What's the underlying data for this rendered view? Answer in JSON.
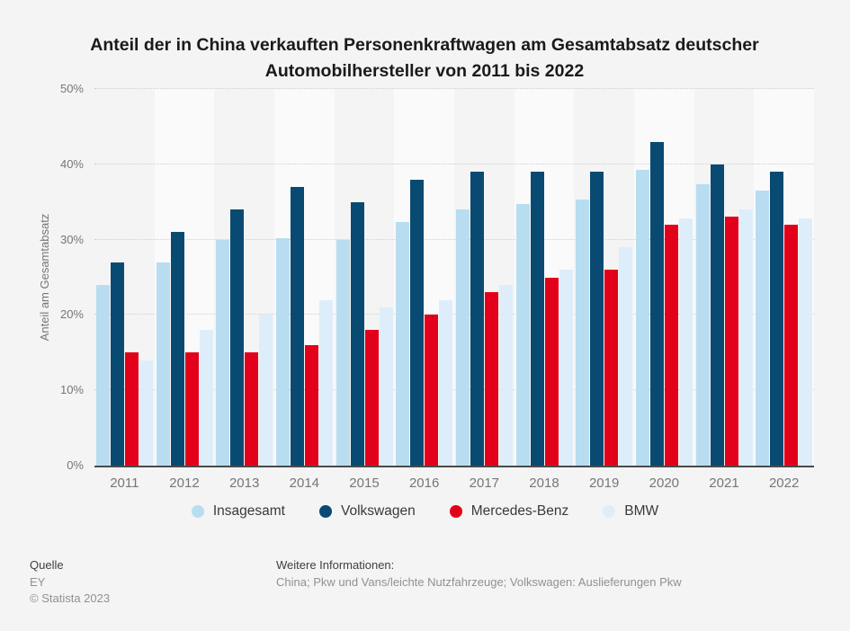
{
  "chart_data": {
    "type": "bar",
    "title": "Anteil der in China verkauften Personenkraftwagen am Gesamtabsatz deutscher Automobilhersteller von 2011 bis 2022",
    "ylabel": "Anteil am Gesamtabsatz",
    "ylim": [
      0,
      50
    ],
    "yticks": [
      0,
      10,
      20,
      30,
      40,
      50
    ],
    "ytick_suffix": "%",
    "grid": true,
    "legend_position": "bottom",
    "categories": [
      "2011",
      "2012",
      "2013",
      "2014",
      "2015",
      "2016",
      "2017",
      "2018",
      "2019",
      "2020",
      "2021",
      "2022"
    ],
    "series": [
      {
        "name": "Insagesamt",
        "color": "#b8ddf1",
        "values": [
          24,
          27,
          30,
          30.2,
          30,
          32.3,
          34,
          34.7,
          35.3,
          39.3,
          37.3,
          36.5
        ]
      },
      {
        "name": "Volkswagen",
        "color": "#094a72",
        "values": [
          27,
          31,
          34,
          37,
          35,
          38,
          39,
          39,
          39,
          43,
          40,
          39
        ]
      },
      {
        "name": "Mercedes-Benz",
        "color": "#e2001a",
        "values": [
          15,
          15,
          15,
          16,
          18,
          20,
          23,
          25,
          26,
          32,
          33,
          32
        ]
      },
      {
        "name": "BMW",
        "color": "#ddeefa",
        "values": [
          14,
          18,
          20,
          22,
          21,
          22,
          24,
          26,
          29,
          32.8,
          34,
          32.8
        ]
      }
    ],
    "band_color": "#fafafa"
  },
  "footer": {
    "source_label": "Quelle",
    "source": "EY",
    "copyright": "© Statista 2023",
    "info_label": "Weitere Informationen:",
    "info": "China; Pkw und Vans/leichte Nutzfahrzeuge; Volkswagen: Auslieferungen Pkw"
  },
  "colors": {
    "background": "#f4f4f4",
    "axis": "#4a4a4a",
    "gridline": "#cfcfcf",
    "tick_text": "#767676",
    "title_text": "#1a1a1a"
  }
}
